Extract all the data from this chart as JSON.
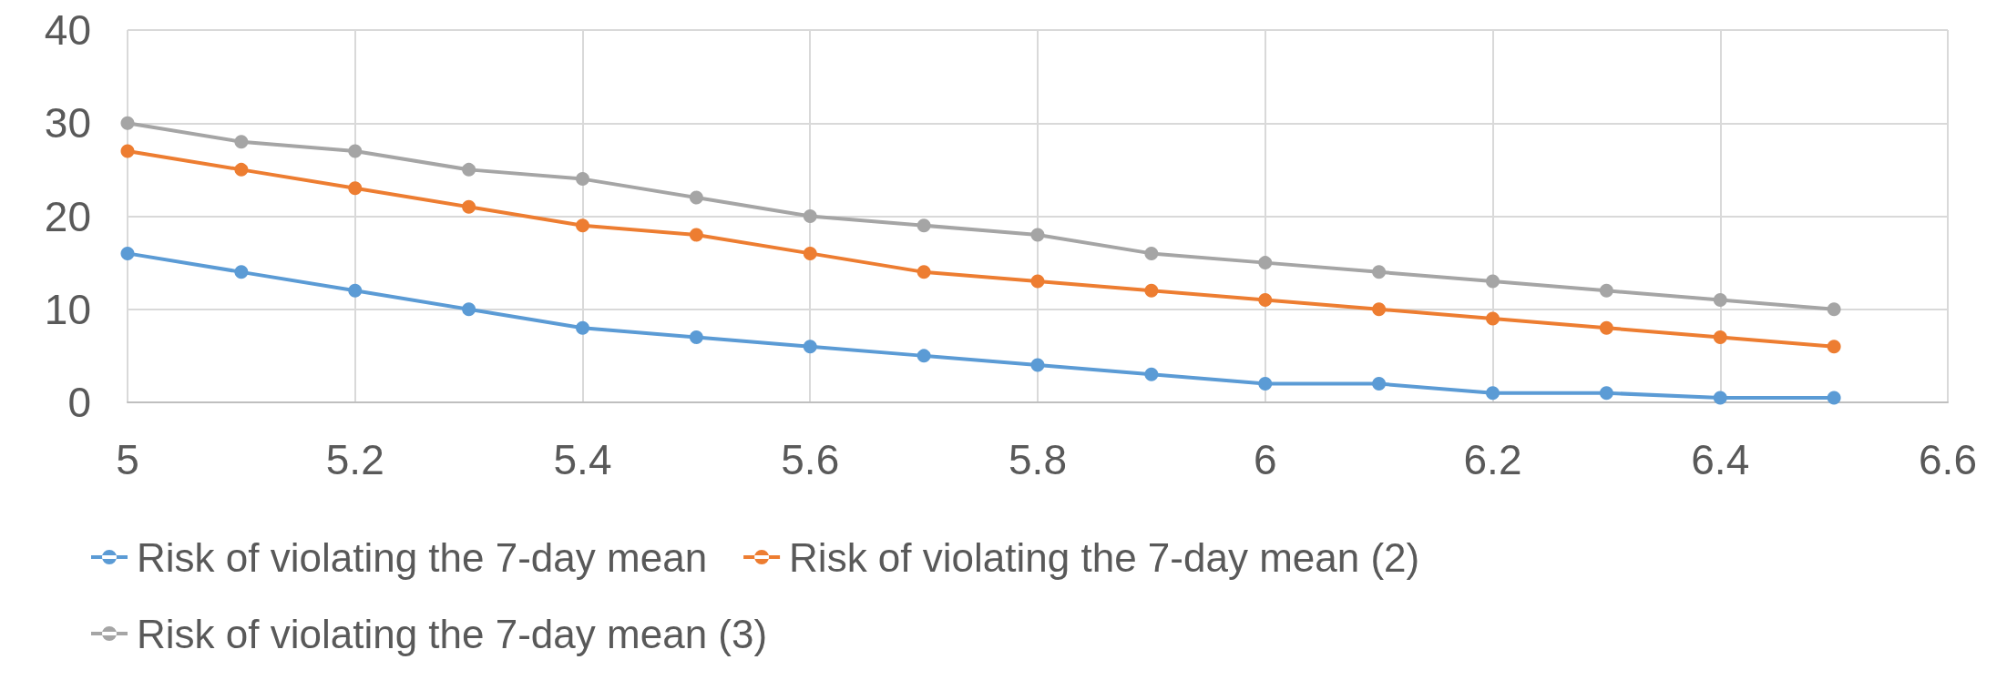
{
  "chart_data": {
    "type": "line",
    "x": [
      5,
      5.1,
      5.2,
      5.3,
      5.4,
      5.5,
      5.6,
      5.7,
      5.8,
      5.9,
      6,
      6.1,
      6.2,
      6.3,
      6.4,
      6.5
    ],
    "series": [
      {
        "name": "Risk of violating the 7-day mean",
        "color": "#5b9bd5",
        "values": [
          16,
          14,
          12,
          10,
          8,
          7,
          6,
          5,
          4,
          3,
          2,
          2,
          1,
          1,
          0.5,
          0.5
        ]
      },
      {
        "name": "Risk of violating the 7-day mean (2)",
        "color": "#ed7d31",
        "values": [
          27,
          25,
          23,
          21,
          19,
          18,
          16,
          14,
          13,
          12,
          11,
          10,
          9,
          8,
          7,
          6
        ]
      },
      {
        "name": "Risk of violating the 7-day mean (3)",
        "color": "#a5a5a5",
        "values": [
          30,
          28,
          27,
          25,
          24,
          22,
          20,
          19,
          18,
          16,
          15,
          14,
          13,
          12,
          11,
          10
        ]
      }
    ],
    "xlim": [
      5,
      6.6
    ],
    "xticks": [
      5,
      5.2,
      5.4,
      5.6,
      5.8,
      6,
      6.2,
      6.4,
      6.6
    ],
    "ylim": [
      0,
      40
    ],
    "yticks": [
      0,
      10,
      20,
      30,
      40
    ],
    "grid": true,
    "legend": "bottom",
    "marker": "circle",
    "line_style": "solid"
  }
}
